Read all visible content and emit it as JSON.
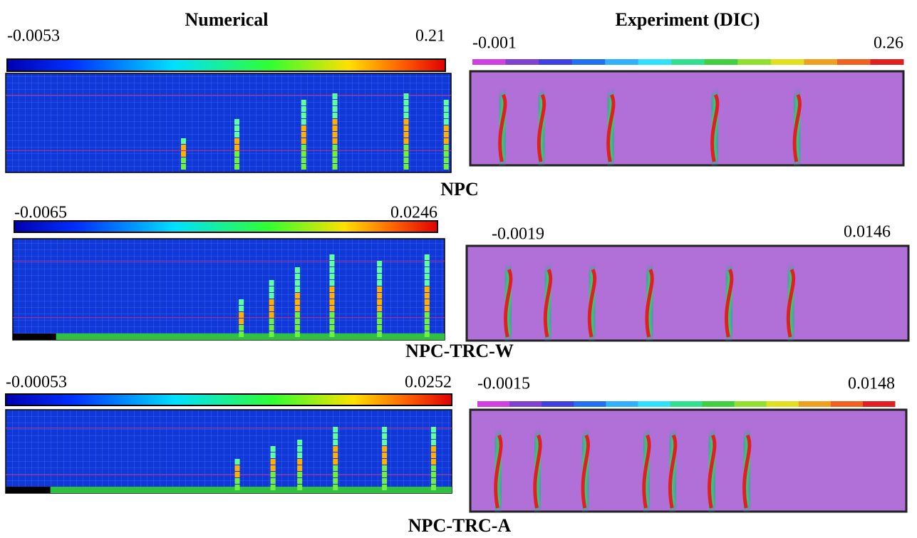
{
  "columns": {
    "numerical": "Numerical",
    "experiment": "Experiment (DIC)"
  },
  "rows": [
    {
      "label": "NPC",
      "numerical": {
        "min": "-0.0053",
        "max": "0.21"
      },
      "experiment": {
        "min": "-0.001",
        "max": "0.26"
      }
    },
    {
      "label": "NPC-TRC-W",
      "numerical": {
        "min": "-0.0065",
        "max": "0.0246"
      },
      "experiment": {
        "min": "-0.0019",
        "max": "0.0146"
      }
    },
    {
      "label": "NPC-TRC-A",
      "numerical": {
        "min": "-0.00053",
        "max": "0.0252"
      },
      "experiment": {
        "min": "-0.0015",
        "max": "0.0148"
      }
    }
  ]
}
